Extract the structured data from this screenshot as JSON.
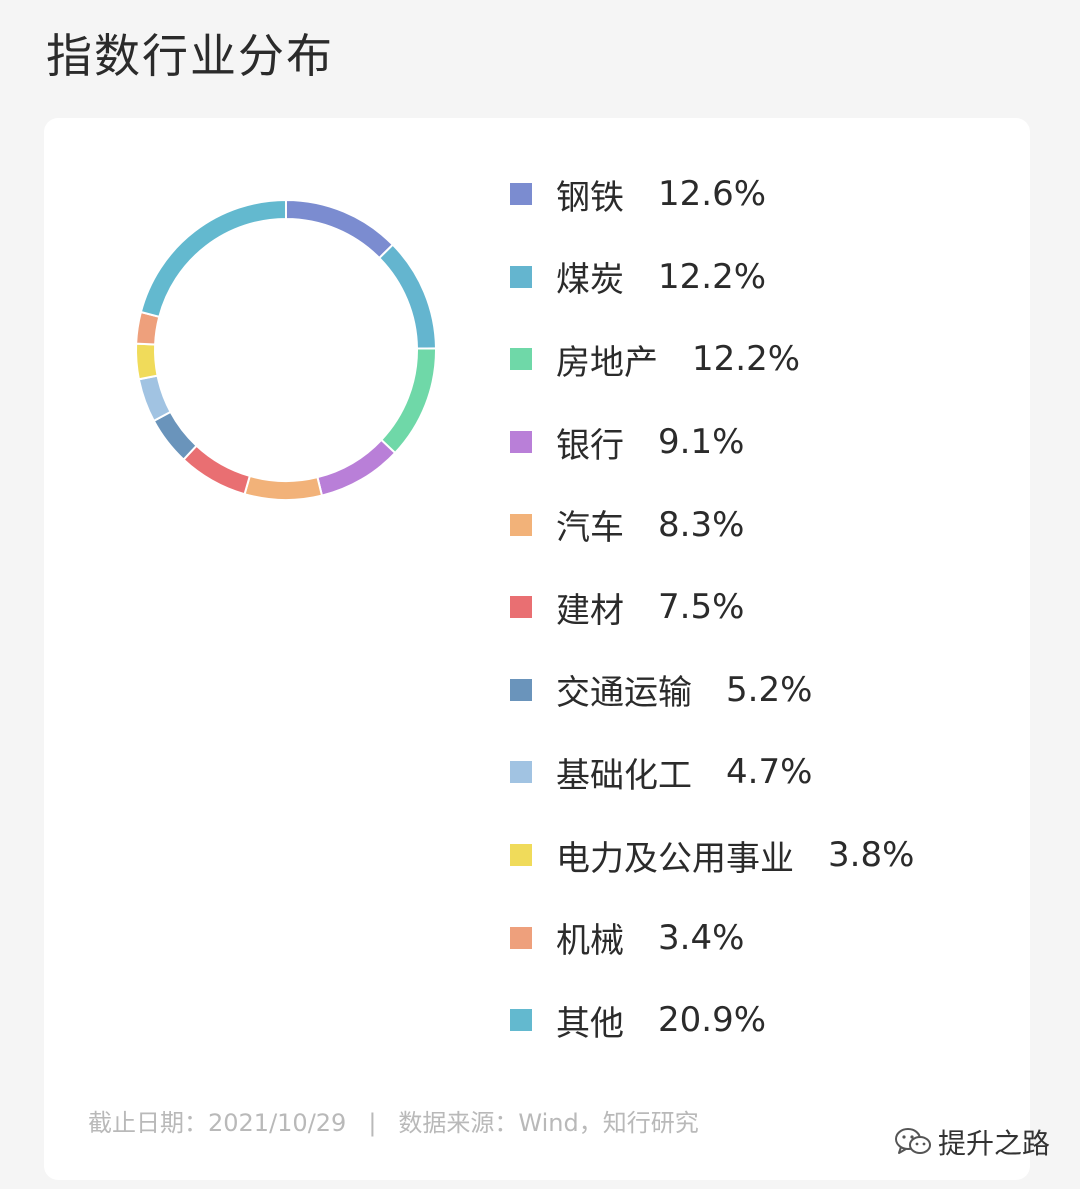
{
  "title": "指数行业分布",
  "chart_data": {
    "type": "pie",
    "style": "donut",
    "legend_position": "right",
    "categories": [
      "钢铁",
      "煤炭",
      "房地产",
      "银行",
      "汽车",
      "建材",
      "交通运输",
      "基础化工",
      "电力及公用事业",
      "机械",
      "其他"
    ],
    "values": [
      12.6,
      12.2,
      12.2,
      9.1,
      8.3,
      7.5,
      5.2,
      4.7,
      3.8,
      3.4,
      20.9
    ],
    "value_labels": [
      "12.6%",
      "12.2%",
      "12.2%",
      "9.1%",
      "8.3%",
      "7.5%",
      "5.2%",
      "4.7%",
      "3.8%",
      "3.4%",
      "20.9%"
    ],
    "colors": [
      "#7b8cd0",
      "#64b5cf",
      "#6fd8a8",
      "#b97fd8",
      "#f2b279",
      "#e96f72",
      "#6a94bb",
      "#a1c3e2",
      "#f0db5a",
      "#eea07c",
      "#63b9cf"
    ]
  },
  "footnote": {
    "date": "截止日期：2021/10/29",
    "separator": "|",
    "source": "数据来源：Wind，知行研究"
  },
  "watermark": {
    "text": "提升之路",
    "icon": "wechat-icon"
  }
}
